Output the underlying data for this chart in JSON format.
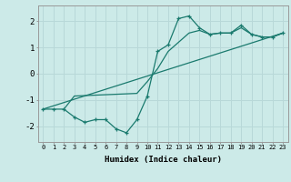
{
  "title": "",
  "xlabel": "Humidex (Indice chaleur)",
  "background_color": "#cceae8",
  "line_color": "#1a7a6e",
  "grid_color": "#b8d8d8",
  "xlim": [
    -0.5,
    23.5
  ],
  "ylim": [
    -2.6,
    2.6
  ],
  "yticks": [
    -2,
    -1,
    0,
    1,
    2
  ],
  "xticks": [
    0,
    1,
    2,
    3,
    4,
    5,
    6,
    7,
    8,
    9,
    10,
    11,
    12,
    13,
    14,
    15,
    16,
    17,
    18,
    19,
    20,
    21,
    22,
    23
  ],
  "zigzag_x": [
    0,
    1,
    2,
    3,
    4,
    5,
    6,
    7,
    8,
    9,
    10,
    11,
    12,
    13,
    14,
    15,
    16,
    17,
    18,
    19,
    20,
    21,
    22,
    23
  ],
  "zigzag_y": [
    -1.35,
    -1.35,
    -1.35,
    -1.65,
    -1.85,
    -1.75,
    -1.75,
    -2.1,
    -2.25,
    -1.75,
    -0.85,
    0.85,
    1.1,
    2.1,
    2.2,
    1.75,
    1.5,
    1.55,
    1.55,
    1.85,
    1.5,
    1.4,
    1.4,
    1.55
  ],
  "trend_x": [
    0,
    23
  ],
  "trend_y": [
    -1.35,
    1.55
  ],
  "third_x": [
    2,
    3,
    9,
    10,
    11,
    12,
    13,
    14,
    15,
    16,
    17,
    18,
    19,
    20,
    21,
    22,
    23
  ],
  "third_y": [
    -1.35,
    -0.85,
    -0.75,
    -0.3,
    0.2,
    0.85,
    1.2,
    1.55,
    1.65,
    1.5,
    1.55,
    1.55,
    1.75,
    1.5,
    1.4,
    1.4,
    1.55
  ]
}
